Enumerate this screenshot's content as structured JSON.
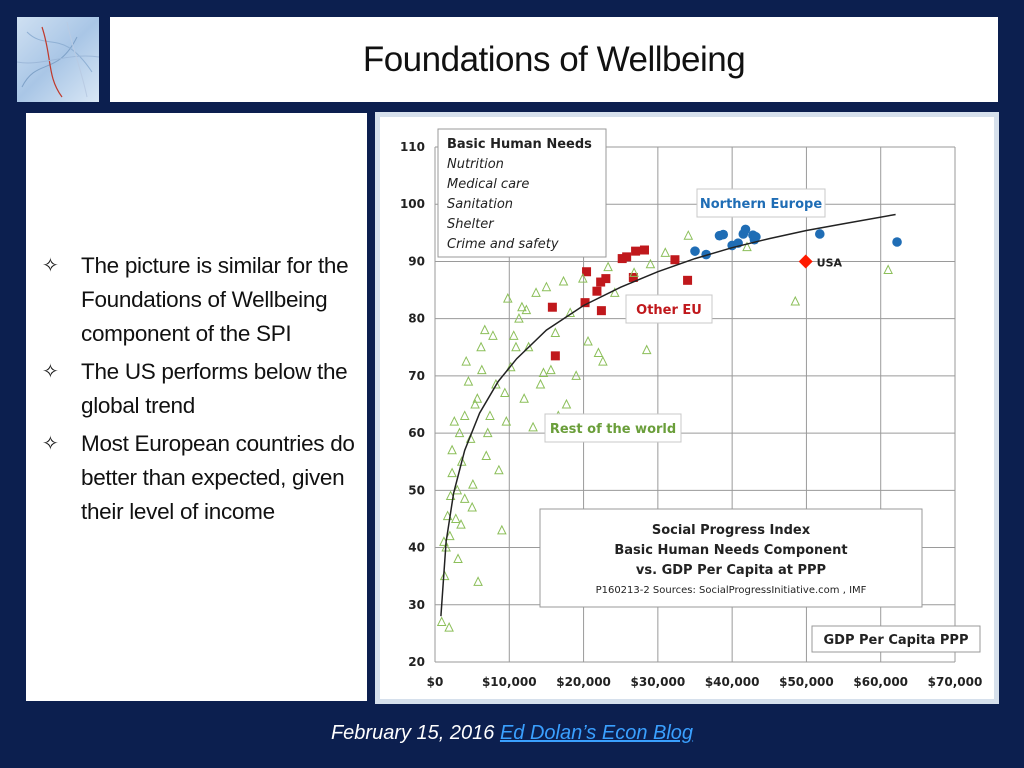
{
  "slide": {
    "title": "Foundations of Wellbeing",
    "bullets": [
      "The picture is similar for the Foundations of Wellbeing component of the SPI",
      "The US performs below the global trend",
      "Most European countries do better than expected, given their level of income"
    ],
    "footer_date": "February 15, 2016",
    "footer_link": "Ed Dolan’s Econ Blog"
  },
  "chart_data": {
    "type": "scatter",
    "xlim": [
      0,
      70000
    ],
    "ylim": [
      20,
      110
    ],
    "x_ticks": [
      "$0",
      "$10,000",
      "$20,000",
      "$30,000",
      "$40,000",
      "$50,000",
      "$60,000",
      "$70,000"
    ],
    "y_ticks": [
      "20",
      "30",
      "40",
      "50",
      "60",
      "70",
      "80",
      "90",
      "100",
      "110"
    ],
    "grid": true,
    "colors": {
      "northern": "#1f6db5",
      "other_eu": "#c0181c",
      "usa": "#ff1a00",
      "rest": "#8cbf5a",
      "trend": "#222222"
    },
    "legend_box": {
      "title": "Basic Human Needs",
      "items": [
        "Nutrition",
        "Medical care",
        "Sanitation",
        "Shelter",
        "Crime and safety"
      ]
    },
    "labels": {
      "northern": "Northern Europe",
      "other_eu": "Other EU",
      "rest": "Rest of the world",
      "usa": "USA"
    },
    "info_box": [
      "Social Progress Index",
      "Basic Human Needs Component",
      "vs. GDP Per Capita at PPP",
      "P160213-2 Sources: SocialProgressInitiative.com , IMF"
    ],
    "x_label": "GDP Per Capita PPP",
    "series": [
      {
        "name": "Northern Europe",
        "marker": "circle",
        "points": [
          [
            35000,
            91.8
          ],
          [
            36500,
            91.2
          ],
          [
            38300,
            94.5
          ],
          [
            38800,
            94.7
          ],
          [
            40000,
            92.8
          ],
          [
            40800,
            93.2
          ],
          [
            41500,
            94.8
          ],
          [
            41800,
            95.6
          ],
          [
            42800,
            94.6
          ],
          [
            43000,
            93.8
          ],
          [
            43200,
            94.3
          ],
          [
            51800,
            94.8
          ],
          [
            62200,
            93.4
          ]
        ]
      },
      {
        "name": "Other EU",
        "marker": "square",
        "points": [
          [
            15800,
            82
          ],
          [
            16200,
            73.5
          ],
          [
            20200,
            82.8
          ],
          [
            20400,
            88.2
          ],
          [
            21800,
            84.8
          ],
          [
            22300,
            86.4
          ],
          [
            22400,
            81.4
          ],
          [
            23000,
            87
          ],
          [
            25200,
            90.5
          ],
          [
            25800,
            90.8
          ],
          [
            26700,
            87.2
          ],
          [
            27000,
            91.8
          ],
          [
            28200,
            92
          ],
          [
            32300,
            90.3
          ],
          [
            34000,
            86.7
          ]
        ]
      },
      {
        "name": "USA",
        "marker": "diamond",
        "points": [
          [
            49900,
            90
          ]
        ]
      },
      {
        "name": "Rest of the world",
        "marker": "triangle",
        "points": [
          [
            900,
            27
          ],
          [
            1300,
            35
          ],
          [
            1200,
            41
          ],
          [
            1500,
            40
          ],
          [
            1700,
            45.5
          ],
          [
            1900,
            26
          ],
          [
            2000,
            42
          ],
          [
            2100,
            49
          ],
          [
            2300,
            53
          ],
          [
            2300,
            57
          ],
          [
            2600,
            62
          ],
          [
            2800,
            45
          ],
          [
            3000,
            50
          ],
          [
            3100,
            38
          ],
          [
            3300,
            60
          ],
          [
            3500,
            44
          ],
          [
            3600,
            55
          ],
          [
            4000,
            48.5
          ],
          [
            4000,
            63
          ],
          [
            4200,
            72.5
          ],
          [
            4500,
            69
          ],
          [
            4800,
            59
          ],
          [
            5000,
            47
          ],
          [
            5100,
            51
          ],
          [
            5400,
            65
          ],
          [
            5700,
            66
          ],
          [
            5800,
            34
          ],
          [
            6200,
            75
          ],
          [
            6300,
            71
          ],
          [
            6700,
            78
          ],
          [
            6900,
            56
          ],
          [
            7100,
            60
          ],
          [
            7400,
            63
          ],
          [
            7800,
            77
          ],
          [
            8200,
            68.5
          ],
          [
            8600,
            53.5
          ],
          [
            9000,
            43
          ],
          [
            9400,
            67
          ],
          [
            9600,
            62
          ],
          [
            9800,
            83.5
          ],
          [
            10200,
            71.5
          ],
          [
            10600,
            77
          ],
          [
            10900,
            75
          ],
          [
            11300,
            80
          ],
          [
            11700,
            82
          ],
          [
            12000,
            66
          ],
          [
            12300,
            81.5
          ],
          [
            12600,
            75
          ],
          [
            13200,
            61
          ],
          [
            13600,
            84.5
          ],
          [
            14200,
            68.5
          ],
          [
            14600,
            70.5
          ],
          [
            15000,
            85.5
          ],
          [
            15600,
            71
          ],
          [
            16200,
            77.5
          ],
          [
            16600,
            63
          ],
          [
            17300,
            86.5
          ],
          [
            17700,
            65
          ],
          [
            18200,
            81
          ],
          [
            19000,
            70
          ],
          [
            19900,
            87
          ],
          [
            20600,
            76
          ],
          [
            22000,
            74
          ],
          [
            22600,
            72.5
          ],
          [
            23300,
            89
          ],
          [
            24200,
            84.5
          ],
          [
            26800,
            88
          ],
          [
            28500,
            74.5
          ],
          [
            29000,
            89.5
          ],
          [
            31000,
            91.5
          ],
          [
            34100,
            94.5
          ],
          [
            42000,
            92.5
          ],
          [
            48500,
            83
          ],
          [
            61000,
            88.5
          ]
        ]
      }
    ],
    "trend_line": [
      [
        800,
        28
      ],
      [
        1500,
        41
      ],
      [
        2500,
        49.5
      ],
      [
        4000,
        57
      ],
      [
        6000,
        63.5
      ],
      [
        8500,
        69
      ],
      [
        11000,
        73
      ],
      [
        15000,
        78
      ],
      [
        20000,
        82.3
      ],
      [
        25000,
        85.5
      ],
      [
        30000,
        88.2
      ],
      [
        35000,
        90.5
      ],
      [
        40000,
        92.4
      ],
      [
        45000,
        94
      ],
      [
        50000,
        95.4
      ],
      [
        55000,
        96.6
      ],
      [
        62000,
        98.2
      ]
    ]
  }
}
